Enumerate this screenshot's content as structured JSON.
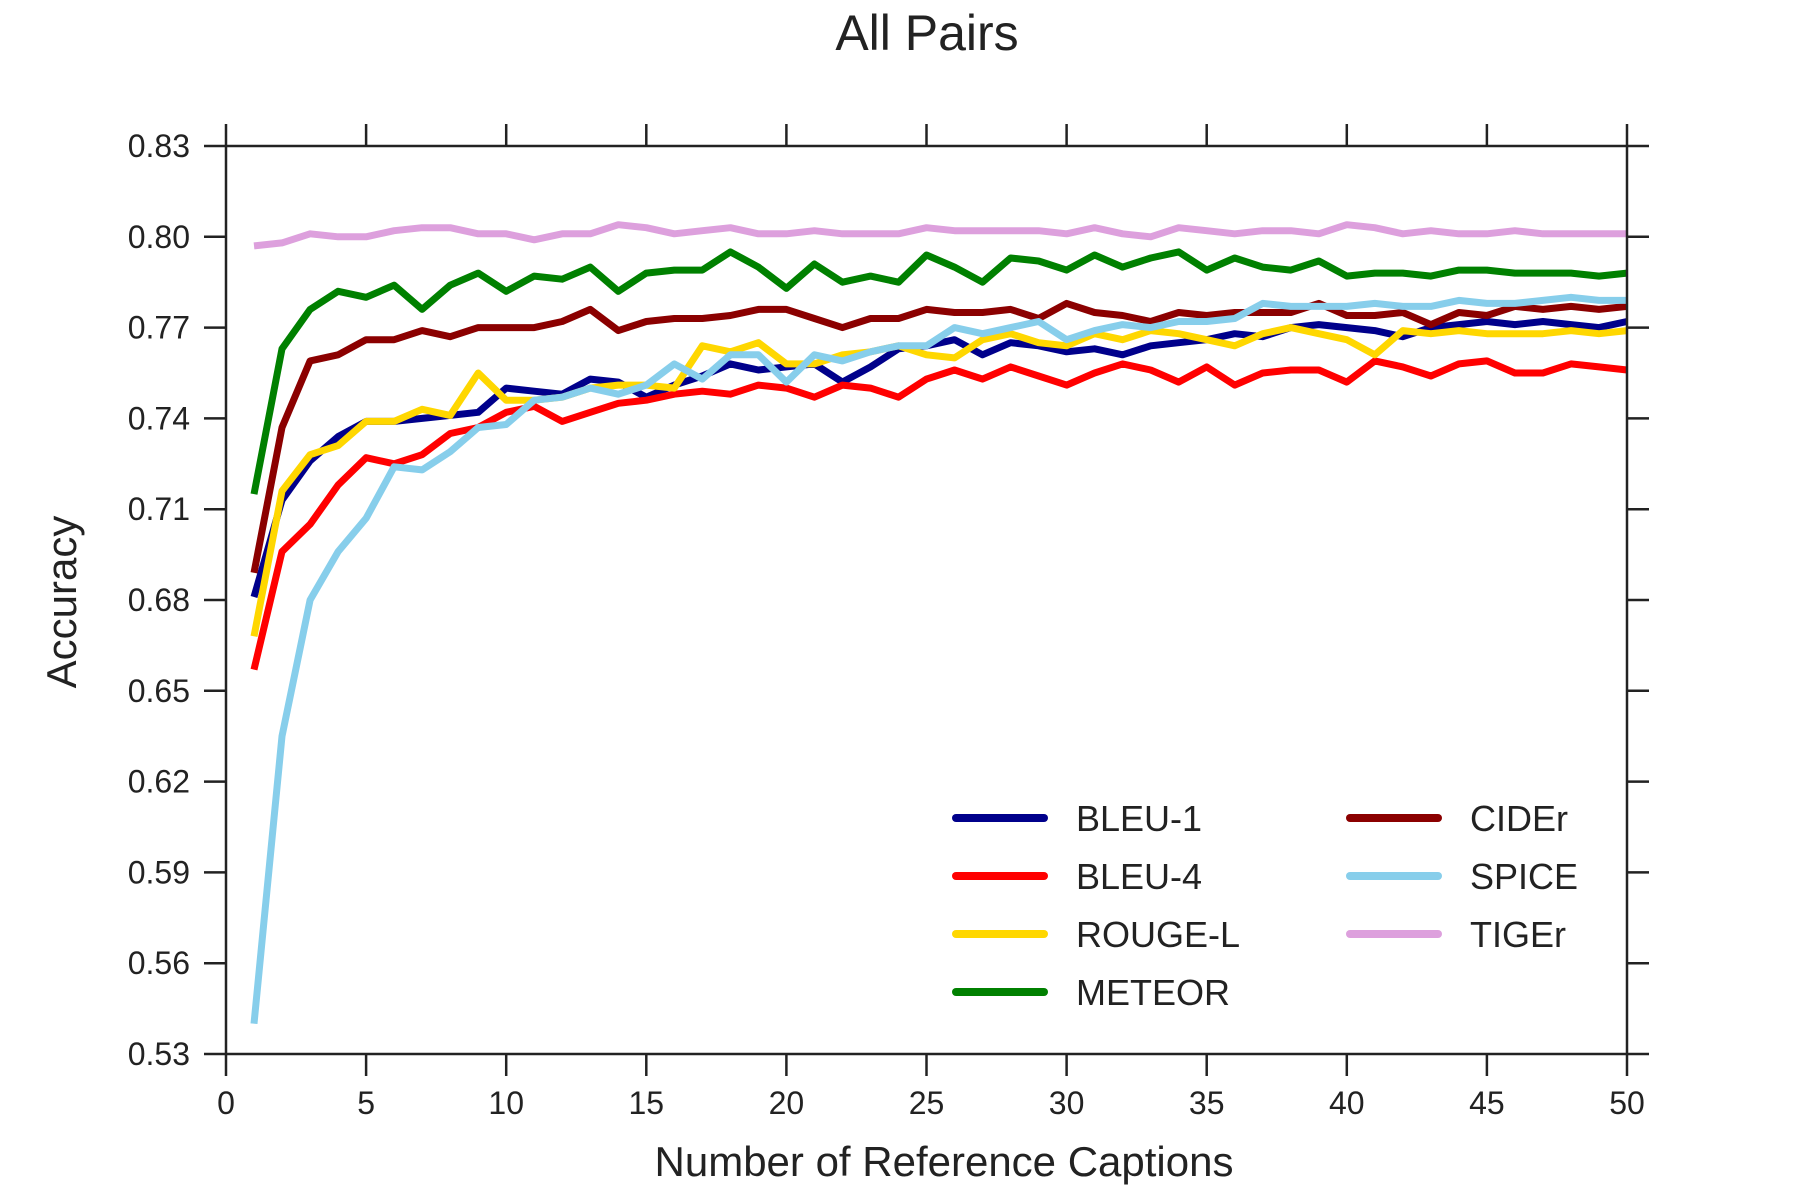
{
  "chart_data": {
    "type": "line",
    "title": "All Pairs",
    "xlabel": "Number of Reference Captions",
    "ylabel": "Accuracy",
    "xlim": [
      0,
      50
    ],
    "ylim": [
      0.53,
      0.83
    ],
    "xticks": [
      0,
      5,
      10,
      15,
      20,
      25,
      30,
      35,
      40,
      45,
      50
    ],
    "xtick_labels": [
      "0",
      "5",
      "10",
      "15",
      "20",
      "25",
      "30",
      "35",
      "40",
      "45",
      "50"
    ],
    "yticks": [
      0.53,
      0.56,
      0.59,
      0.62,
      0.65,
      0.68,
      0.71,
      0.74,
      0.77,
      0.8,
      0.83
    ],
    "ytick_labels": [
      "0.53",
      "0.56",
      "0.59",
      "0.62",
      "0.65",
      "0.68",
      "0.71",
      "0.74",
      "0.77",
      "0.80",
      "0.83"
    ],
    "grid": false,
    "legend_position": "lower-right",
    "legend_columns": 2,
    "x": [
      1,
      2,
      3,
      4,
      5,
      6,
      7,
      8,
      9,
      10,
      11,
      12,
      13,
      14,
      15,
      16,
      17,
      18,
      19,
      20,
      21,
      22,
      23,
      24,
      25,
      26,
      27,
      28,
      29,
      30,
      31,
      32,
      33,
      34,
      35,
      36,
      37,
      38,
      39,
      40,
      41,
      42,
      43,
      44,
      45,
      46,
      47,
      48,
      49,
      50
    ],
    "series": [
      {
        "name": "BLEU-1",
        "color": "#00008b",
        "values": [
          0.681,
          0.713,
          0.726,
          0.734,
          0.739,
          0.739,
          0.74,
          0.741,
          0.742,
          0.75,
          0.749,
          0.748,
          0.753,
          0.752,
          0.747,
          0.751,
          0.754,
          0.758,
          0.756,
          0.757,
          0.758,
          0.752,
          0.757,
          0.763,
          0.764,
          0.766,
          0.761,
          0.765,
          0.764,
          0.762,
          0.763,
          0.761,
          0.764,
          0.765,
          0.766,
          0.768,
          0.767,
          0.77,
          0.771,
          0.77,
          0.769,
          0.767,
          0.77,
          0.771,
          0.772,
          0.771,
          0.772,
          0.771,
          0.77,
          0.772
        ]
      },
      {
        "name": "BLEU-4",
        "color": "#ff0000",
        "values": [
          0.657,
          0.696,
          0.705,
          0.718,
          0.727,
          0.725,
          0.728,
          0.735,
          0.737,
          0.742,
          0.744,
          0.739,
          0.742,
          0.745,
          0.746,
          0.748,
          0.749,
          0.748,
          0.751,
          0.75,
          0.747,
          0.751,
          0.75,
          0.747,
          0.753,
          0.756,
          0.753,
          0.757,
          0.754,
          0.751,
          0.755,
          0.758,
          0.756,
          0.752,
          0.757,
          0.751,
          0.755,
          0.756,
          0.756,
          0.752,
          0.759,
          0.757,
          0.754,
          0.758,
          0.759,
          0.755,
          0.755,
          0.758,
          0.757,
          0.756
        ]
      },
      {
        "name": "ROUGE-L",
        "color": "#ffd700",
        "values": [
          0.668,
          0.716,
          0.728,
          0.731,
          0.739,
          0.739,
          0.743,
          0.741,
          0.755,
          0.746,
          0.746,
          0.747,
          0.75,
          0.751,
          0.751,
          0.75,
          0.764,
          0.762,
          0.765,
          0.758,
          0.758,
          0.761,
          0.762,
          0.764,
          0.761,
          0.76,
          0.766,
          0.768,
          0.765,
          0.764,
          0.768,
          0.766,
          0.769,
          0.768,
          0.766,
          0.764,
          0.768,
          0.77,
          0.768,
          0.766,
          0.761,
          0.769,
          0.768,
          0.769,
          0.768,
          0.768,
          0.768,
          0.769,
          0.768,
          0.769
        ]
      },
      {
        "name": "METEOR",
        "color": "#008000",
        "values": [
          0.715,
          0.763,
          0.776,
          0.782,
          0.78,
          0.784,
          0.776,
          0.784,
          0.788,
          0.782,
          0.787,
          0.786,
          0.79,
          0.782,
          0.788,
          0.789,
          0.789,
          0.795,
          0.79,
          0.783,
          0.791,
          0.785,
          0.787,
          0.785,
          0.794,
          0.79,
          0.785,
          0.793,
          0.792,
          0.789,
          0.794,
          0.79,
          0.793,
          0.795,
          0.789,
          0.793,
          0.79,
          0.789,
          0.792,
          0.787,
          0.788,
          0.788,
          0.787,
          0.789,
          0.789,
          0.788,
          0.788,
          0.788,
          0.787,
          0.788
        ]
      },
      {
        "name": "CIDEr",
        "color": "#8b0000",
        "values": [
          0.689,
          0.737,
          0.759,
          0.761,
          0.766,
          0.766,
          0.769,
          0.767,
          0.77,
          0.77,
          0.77,
          0.772,
          0.776,
          0.769,
          0.772,
          0.773,
          0.773,
          0.774,
          0.776,
          0.776,
          0.773,
          0.77,
          0.773,
          0.773,
          0.776,
          0.775,
          0.775,
          0.776,
          0.773,
          0.778,
          0.775,
          0.774,
          0.772,
          0.775,
          0.774,
          0.775,
          0.775,
          0.775,
          0.778,
          0.774,
          0.774,
          0.775,
          0.771,
          0.775,
          0.774,
          0.777,
          0.776,
          0.777,
          0.776,
          0.777
        ]
      },
      {
        "name": "SPICE",
        "color": "#87ceeb",
        "values": [
          0.54,
          0.635,
          0.68,
          0.696,
          0.707,
          0.724,
          0.723,
          0.729,
          0.737,
          0.738,
          0.746,
          0.747,
          0.75,
          0.748,
          0.751,
          0.758,
          0.753,
          0.761,
          0.761,
          0.752,
          0.761,
          0.759,
          0.762,
          0.764,
          0.764,
          0.77,
          0.768,
          0.77,
          0.772,
          0.766,
          0.769,
          0.771,
          0.77,
          0.772,
          0.772,
          0.773,
          0.778,
          0.777,
          0.777,
          0.777,
          0.778,
          0.777,
          0.777,
          0.779,
          0.778,
          0.778,
          0.779,
          0.78,
          0.779,
          0.779
        ]
      },
      {
        "name": "TIGEr",
        "color": "#dda0dd",
        "values": [
          0.797,
          0.798,
          0.801,
          0.8,
          0.8,
          0.802,
          0.803,
          0.803,
          0.801,
          0.801,
          0.799,
          0.801,
          0.801,
          0.804,
          0.803,
          0.801,
          0.802,
          0.803,
          0.801,
          0.801,
          0.802,
          0.801,
          0.801,
          0.801,
          0.803,
          0.802,
          0.802,
          0.802,
          0.802,
          0.801,
          0.803,
          0.801,
          0.8,
          0.803,
          0.802,
          0.801,
          0.802,
          0.802,
          0.801,
          0.804,
          0.803,
          0.801,
          0.802,
          0.801,
          0.801,
          0.802,
          0.801,
          0.801,
          0.801,
          0.801
        ]
      }
    ]
  }
}
